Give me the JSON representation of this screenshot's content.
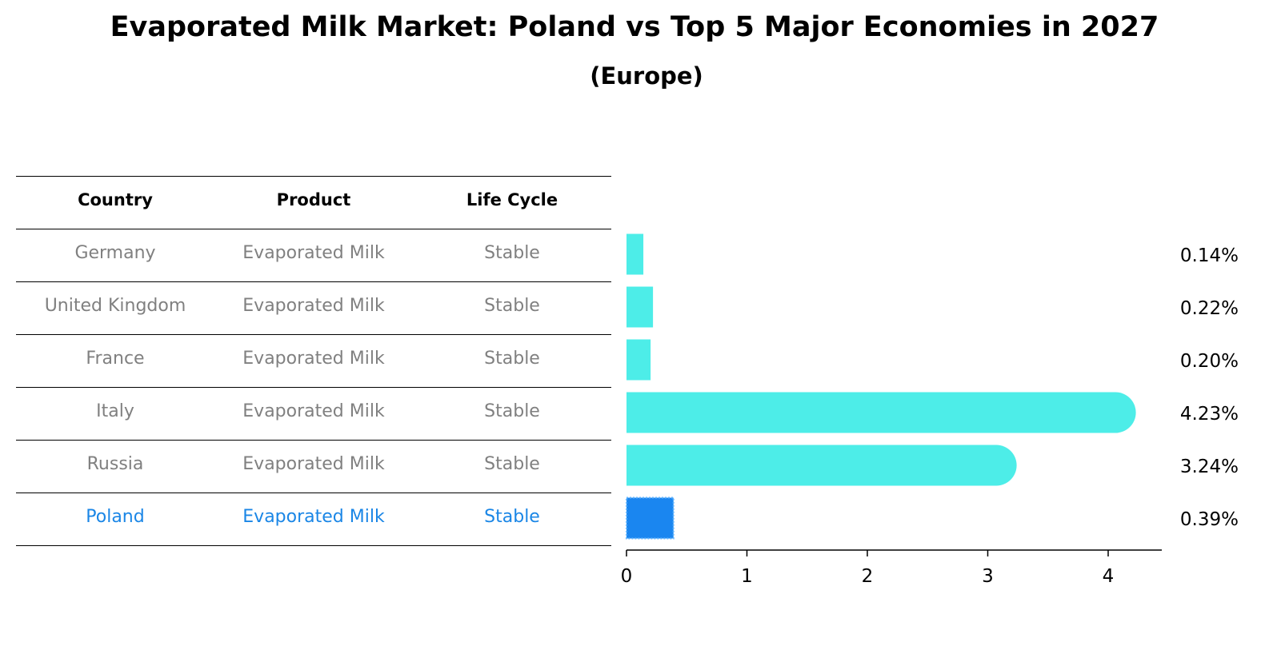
{
  "title": "Evaporated Milk Market: Poland vs Top 5 Major Economies in 2027",
  "subtitle": "(Europe)",
  "table": {
    "headers": [
      "Country",
      "Product",
      "Life Cycle"
    ],
    "rows": [
      [
        "Germany",
        "Evaporated Milk",
        "Stable"
      ],
      [
        "United Kingdom",
        "Evaporated Milk",
        "Stable"
      ],
      [
        "France",
        "Evaporated Milk",
        "Stable"
      ],
      [
        "Italy",
        "Evaporated Milk",
        "Stable"
      ],
      [
        "Russia",
        "Evaporated Milk",
        "Stable"
      ],
      [
        "Poland",
        "Evaporated Milk",
        "Stable"
      ]
    ],
    "highlight_row": 5
  },
  "colors": {
    "bar": "#4dede8",
    "highlight_bar": "#1a86f0",
    "highlight_text": "#1a86e6",
    "muted_text": "#808080"
  },
  "chart_data": {
    "type": "bar",
    "orientation": "horizontal",
    "categories": [
      "Germany",
      "United Kingdom",
      "France",
      "Italy",
      "Russia",
      "Poland"
    ],
    "values": [
      0.14,
      0.22,
      0.2,
      4.23,
      3.24,
      0.39
    ],
    "value_labels": [
      "0.14%",
      "0.22%",
      "0.20%",
      "4.23%",
      "3.24%",
      "0.39%"
    ],
    "highlight": "Poland",
    "xlim": [
      0,
      4.45
    ],
    "xticks": [
      0,
      1,
      2,
      3,
      4
    ],
    "xlabel": "",
    "ylabel": "",
    "grid": false
  }
}
